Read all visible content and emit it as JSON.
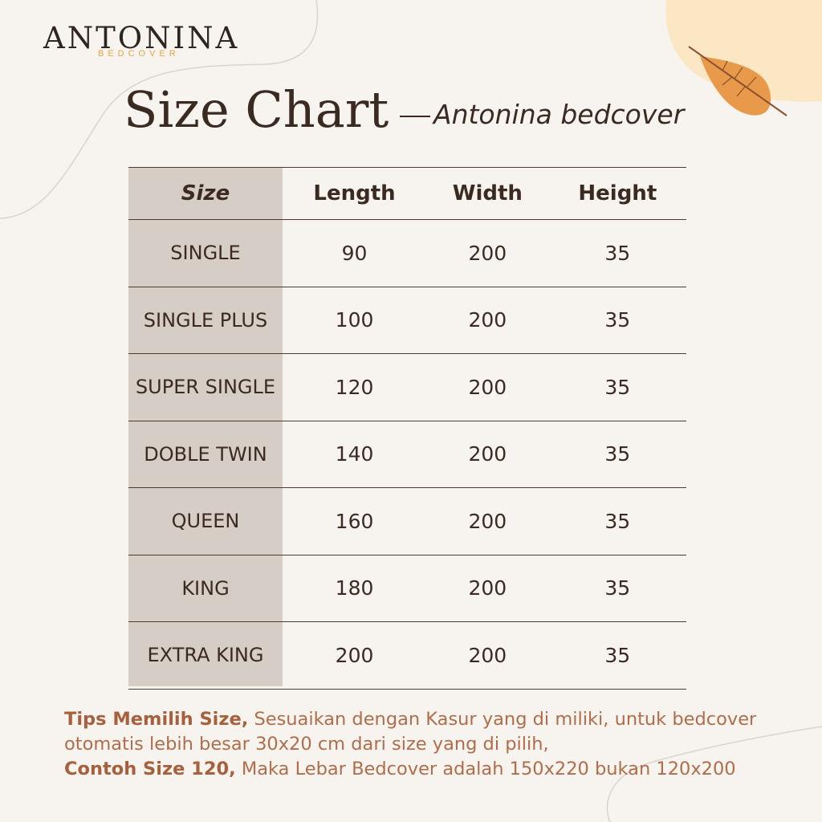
{
  "brand": {
    "name": "ANTONINA",
    "sub": "BEDCOVER"
  },
  "title": "Size Chart",
  "subtitle": "Antonina bedcover",
  "table": {
    "headers": [
      "Size",
      "Length",
      "Width",
      "Height"
    ],
    "rows": [
      [
        "SINGLE",
        "90",
        "200",
        "35"
      ],
      [
        "SINGLE PLUS",
        "100",
        "200",
        "35"
      ],
      [
        "SUPER SINGLE",
        "120",
        "200",
        "35"
      ],
      [
        "DOBLE TWIN",
        "140",
        "200",
        "35"
      ],
      [
        "QUEEN",
        "160",
        "200",
        "35"
      ],
      [
        "KING",
        "180",
        "200",
        "35"
      ],
      [
        "EXTRA KING",
        "200",
        "200",
        "35"
      ]
    ]
  },
  "tips": {
    "label1": "Tips Memilih Size,",
    "text1": " Sesuaikan dengan Kasur yang di miliki, untuk bedcover otomatis lebih besar 30x20 cm dari size yang di pilih,",
    "label2": "Contoh Size 120,",
    "text2": " Maka Lebar Bedcover adalah 150x220 bukan 120x200"
  },
  "colors": {
    "background": "#f7f3ef",
    "size_column": "#d6cdc6",
    "leaf": "#e89a4a",
    "tips": "#b16d4a"
  }
}
